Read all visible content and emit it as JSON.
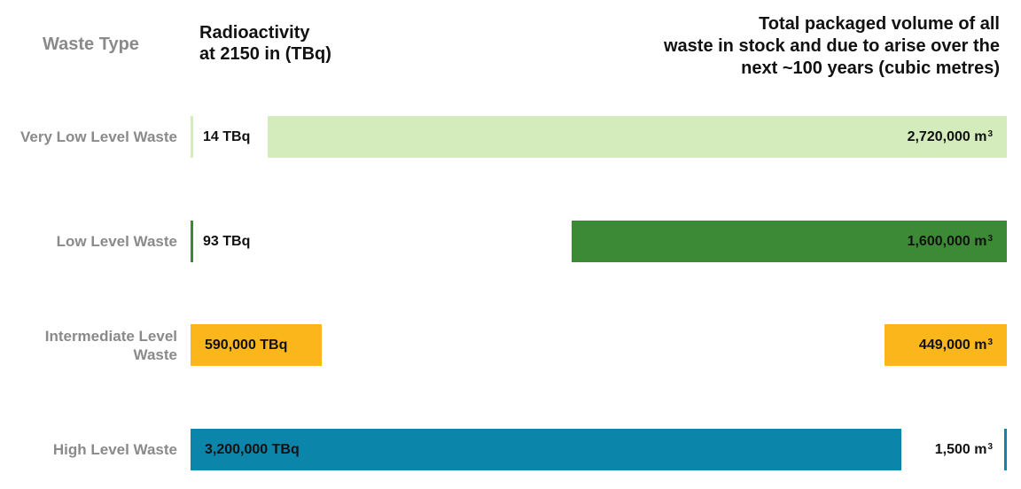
{
  "headers": {
    "waste_type": "Waste Type",
    "radioactivity": [
      "Radioactivity",
      "at 2150 in (TBq)"
    ],
    "volume": [
      "Total packaged volume of all",
      "waste in stock and due to arise over the",
      "next ~100 years (cubic metres)"
    ]
  },
  "chart_data": {
    "type": "bar",
    "categories": [
      "Very Low Level Waste",
      "Low Level Waste",
      "Intermediate Level Waste",
      "High Level Waste"
    ],
    "category_label_lines": [
      [
        "Very Low Level Waste"
      ],
      [
        "Low Level Waste"
      ],
      [
        "Intermediate Level",
        "Waste"
      ],
      [
        "High Level Waste"
      ]
    ],
    "series": [
      {
        "name": "Radioactivity at 2150 in (TBq)",
        "values": [
          14,
          93,
          590000,
          3200000
        ],
        "labels": [
          "14 TBq",
          "93 TBq",
          "590,000 TBq",
          "3,200,000 TBq"
        ],
        "max": 3200000
      },
      {
        "name": "Total packaged volume (cubic metres)",
        "values": [
          2720000,
          1600000,
          449000,
          1500
        ],
        "labels": [
          "2,720,000 m",
          "1,600,000 m",
          "449,000 m",
          "1,500 m"
        ],
        "unit_superscript": "3",
        "max": 2720000
      }
    ],
    "colors": [
      "#d4ebbb",
      "#3d8a36",
      "#fbb61b",
      "#0b85a9"
    ],
    "grid": false
  }
}
